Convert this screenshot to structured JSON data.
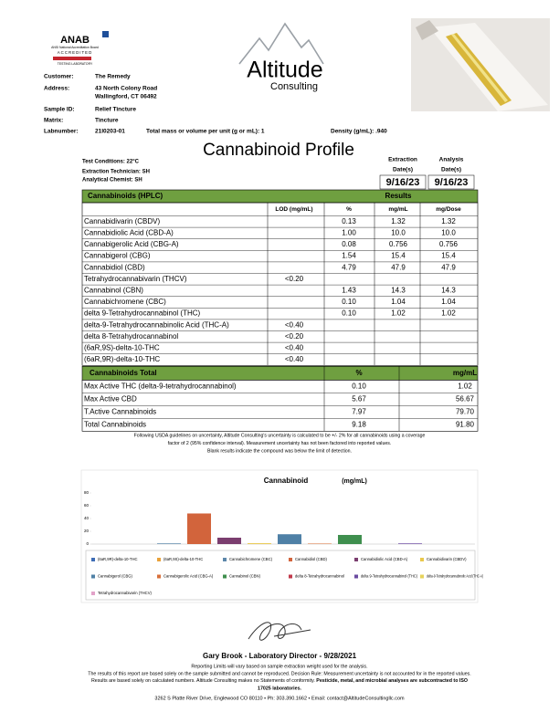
{
  "header": {
    "anab": {
      "name": "ANAB",
      "line1": "ANSI National Accreditation Board",
      "line2": "ACCREDITED",
      "line3": "TESTING LABORATORY"
    },
    "logo": {
      "name": "Altitude",
      "sub": "Consulting"
    },
    "fields": [
      [
        "Customer:",
        "The Remedy"
      ],
      [
        "Address:",
        "43 North Colony Road",
        "Wallingford, CT 06492"
      ],
      [
        "Sample ID:",
        "Relief Tincture"
      ],
      [
        "Matrix:",
        "Tincture"
      ],
      [
        "Labnumber:",
        "21I0203-01"
      ]
    ],
    "mass": "Total mass or volume per unit (g or mL): 1",
    "density": "Density (g/mL): .940"
  },
  "profile": {
    "title": "Cannabinoid Profile",
    "conditions": [
      "Test Conditions: 22°C",
      "Extraction Technician: SH",
      "Analytical Chemist: SH"
    ],
    "dates": [
      {
        "label": [
          "Extraction",
          "Date(s)"
        ],
        "value": "9/16/23"
      },
      {
        "label": [
          "Analysis",
          "Date(s)"
        ],
        "value": "9/16/23"
      }
    ]
  },
  "table": {
    "title": "Cannabinoids (HPLC)",
    "results": "Results",
    "columns": [
      "LOD (mg/mL)",
      "%",
      "mg/mL",
      "mg/Dose"
    ],
    "rows": [
      [
        "Cannabidivarin (CBDV)",
        null,
        "0.13",
        "1.32",
        "1.32"
      ],
      [
        "Cannabidiolic Acid (CBD-A)",
        null,
        "1.00",
        "10.0",
        "10.0"
      ],
      [
        "Cannabigerolic Acid (CBG-A)",
        null,
        "0.08",
        "0.756",
        "0.756"
      ],
      [
        "Cannabigerol (CBG)",
        null,
        "1.54",
        "15.4",
        "15.4"
      ],
      [
        "Cannabidiol (CBD)",
        null,
        "4.79",
        "47.9",
        "47.9"
      ],
      [
        "Tetrahydrocannabivarin (THCV)",
        "<0.20",
        null,
        null,
        null
      ],
      [
        "Cannabinol (CBN)",
        null,
        "1.43",
        "14.3",
        "14.3"
      ],
      [
        "Cannabichromene (CBC)",
        null,
        "0.10",
        "1.04",
        "1.04"
      ],
      [
        "delta 9-Tetrahydrocannabinol (THC)",
        null,
        "0.10",
        "1.02",
        "1.02"
      ],
      [
        "delta-9-Tetrahydrocannabinolic Acid (THC-A)",
        "<0.40",
        null,
        null,
        null
      ],
      [
        "delta 8-Tetrahydrocannabinol",
        "<0.20",
        null,
        null,
        null
      ],
      [
        "(6aR,9S)-delta-10-THC",
        "<0.40",
        null,
        null,
        null
      ],
      [
        "(6aR,9R)-delta-10-THC",
        "<0.40",
        null,
        null,
        null
      ]
    ]
  },
  "totals": {
    "columns": [
      "Cannabinoids Total",
      "%",
      "mg/mL"
    ],
    "rows": [
      [
        "Max Active THC (delta-9-tetrahydrocannabinol)",
        "0.10",
        "1.02"
      ],
      [
        "Max Active CBD",
        "5.67",
        "56.67"
      ],
      [
        "T.Active Cannabinoids",
        "7.97",
        "79.70"
      ],
      [
        "Total Cannabinoids",
        "9.18",
        "91.80"
      ]
    ]
  },
  "notes": [
    "Following USDA guidelines on uncertainty, Altitude Consulting's uncertainty is calculated to be +/- 2% for all cannabinoids using a coverage",
    "factor of 2 (95% confidence interval). Measurement uncertainty has not been factored into reported values.",
    "Blank results indicate the compound was below the limit of detection."
  ],
  "chart_data": {
    "type": "bar",
    "title": "Cannabinoid",
    "unit": "(mg/mL)",
    "ylim": [
      0,
      80
    ],
    "yticks": [
      0,
      20,
      40,
      60,
      80
    ],
    "grid": false,
    "series": [
      {
        "name": "(6aR,9R)-delta-10-THC",
        "color": "#3d6cb5",
        "values": [
          null
        ]
      },
      {
        "name": "(6aR,9S)-delta-10-THC",
        "color": "#e9a23b",
        "values": [
          null
        ]
      },
      {
        "name": "Cannabichromene (CBC)",
        "color": "#5c87aa",
        "values": [
          1.04
        ]
      },
      {
        "name": "Cannabidiol (CBD)",
        "color": "#d2643c",
        "values": [
          47.9
        ]
      },
      {
        "name": "Cannabidiolic Acid (CBD-A)",
        "color": "#7b3e6f",
        "values": [
          10.0
        ]
      },
      {
        "name": "Cannabidivarin (CBDV)",
        "color": "#e9c84c",
        "values": [
          1.32
        ]
      },
      {
        "name": "Cannabigerol (CBG)",
        "color": "#4f80a6",
        "values": [
          15.4
        ]
      },
      {
        "name": "Cannabigerolic Acid (CBG-A)",
        "color": "#d8703b",
        "values": [
          0.756
        ]
      },
      {
        "name": "Cannabinol (CBN)",
        "color": "#3f8f4e",
        "values": [
          14.3
        ]
      },
      {
        "name": "delta 8-Tetrahydrocannabinol",
        "color": "#c23a4c",
        "values": [
          null
        ]
      },
      {
        "name": "delta 9-Tetrahydrocannabinol (THC)",
        "color": "#6b4ba1",
        "values": [
          1.02
        ]
      },
      {
        "name": "delta-9-Tetrahydrocannabinolic Acid (THC-A)",
        "color": "#e6d35b",
        "values": [
          null
        ]
      },
      {
        "name": "Tetrahydrocannabivarin (THCV)",
        "color": "#e2a2c9",
        "values": [
          null
        ]
      }
    ]
  },
  "footer": {
    "signer": "Gary Brook - Laboratory Director - 9/28/2021",
    "lines": [
      "Reporting Limits will vary based on sample extraction weight used for the analysis.",
      "The results of this report are based solely on the sample submitted and cannot be reproduced. Decision Rule: Measurement uncertainty is not accounted for in the reported values."
    ],
    "statement": "Results are based solely on calculated numbers. Altitude Consulting makes no Statements of conformity.",
    "subcontract": [
      "Pesticide, metal, and microbial analyses are subcontracted to ISO",
      "17025 laboratories."
    ],
    "contact": "3262 S Platte River Drive, Englewood CO 80110  •  Ph: 303.390.1662  •  Email: contact@AltitudeConsultingllc.com"
  }
}
